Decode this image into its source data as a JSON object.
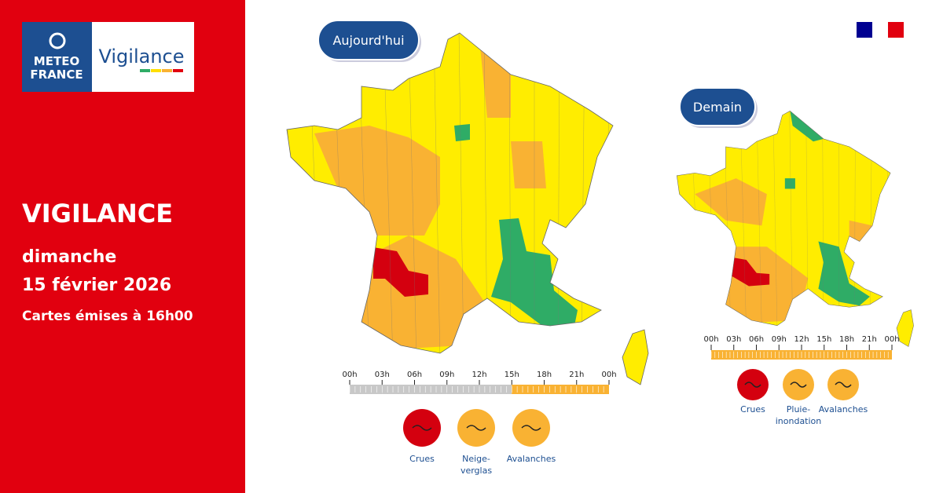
{
  "logo": {
    "line1": "METEO",
    "line2": "FRANCE",
    "product": "Vigilance"
  },
  "panel": {
    "title": "VIGILANCE",
    "day": "dimanche",
    "date": "15 février 2026",
    "issued": "Cartes émises à 16h00"
  },
  "maps": [
    {
      "label": "Aujourd'hui",
      "timeline": [
        "00h",
        "03h",
        "06h",
        "09h",
        "12h",
        "15h",
        "18h",
        "21h",
        "00h"
      ],
      "segments": [
        "#c8c8c8",
        "#c8c8c8",
        "#c8c8c8",
        "#c8c8c8",
        "#c8c8c8",
        "#f9b233",
        "#f9b233",
        "#f9b233"
      ],
      "alerts": [
        {
          "lines": [
            "Crues"
          ],
          "color": "#d4000f"
        },
        {
          "lines": [
            "Neige-",
            "verglas"
          ],
          "color": "#f9b233"
        },
        {
          "lines": [
            "Avalanches"
          ],
          "color": "#f9b233"
        }
      ]
    },
    {
      "label": "Demain",
      "timeline": [
        "00h",
        "03h",
        "06h",
        "09h",
        "12h",
        "15h",
        "18h",
        "21h",
        "00h"
      ],
      "segments": [
        "#f9b233",
        "#f9b233",
        "#f9b233",
        "#f9b233",
        "#f9b233",
        "#f9b233",
        "#f9b233",
        "#f9b233"
      ],
      "alerts": [
        {
          "lines": [
            "Crues"
          ],
          "color": "#d4000f"
        },
        {
          "lines": [
            "Pluie-",
            "inondation"
          ],
          "color": "#f9b233"
        },
        {
          "lines": [
            "Avalanches"
          ],
          "color": "#f9b233"
        }
      ]
    }
  ]
}
